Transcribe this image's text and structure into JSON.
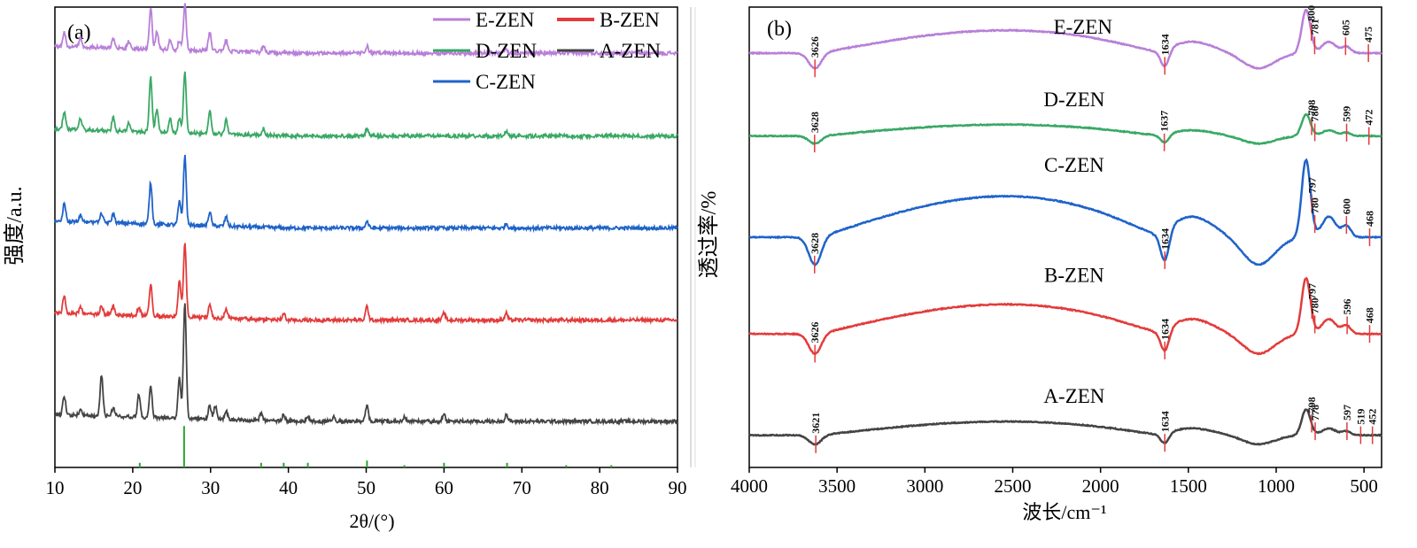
{
  "chart_data": [
    {
      "type": "line",
      "panel_label": "(a)",
      "title": "",
      "xlabel": "2θ/(°)",
      "ylabel": "强度/a.u.",
      "xlim": [
        10,
        90
      ],
      "x_ticks": [
        10,
        20,
        30,
        40,
        50,
        60,
        70,
        80,
        90
      ],
      "grid": false,
      "legend": {
        "placement": "top-right",
        "entries": [
          {
            "name": "E-ZEN",
            "color": "#b87fd8"
          },
          {
            "name": "B-ZEN",
            "color": "#e23c3c"
          },
          {
            "name": "D-ZEN",
            "color": "#3aa865"
          },
          {
            "name": "A-ZEN",
            "color": "#444444"
          },
          {
            "name": "C-ZEN",
            "color": "#1f63c9"
          }
        ]
      },
      "series": [
        {
          "name": "E-ZEN",
          "color": "#b87fd8",
          "baseline_au": 0.9,
          "peaks": [
            {
              "x": 11.2,
              "h": 0.03
            },
            {
              "x": 13.3,
              "h": 0.02
            },
            {
              "x": 17.5,
              "h": 0.02
            },
            {
              "x": 19.5,
              "h": 0.015
            },
            {
              "x": 22.3,
              "h": 0.09
            },
            {
              "x": 23.1,
              "h": 0.04
            },
            {
              "x": 24.8,
              "h": 0.02
            },
            {
              "x": 26.0,
              "h": 0.02
            },
            {
              "x": 26.7,
              "h": 0.1
            },
            {
              "x": 29.9,
              "h": 0.04
            },
            {
              "x": 32.0,
              "h": 0.025
            },
            {
              "x": 36.8,
              "h": 0.015
            },
            {
              "x": 50.1,
              "h": 0.015
            },
            {
              "x": 68.0,
              "h": 0.01
            }
          ]
        },
        {
          "name": "D-ZEN",
          "color": "#3aa865",
          "baseline_au": 0.72,
          "peaks": [
            {
              "x": 11.2,
              "h": 0.04
            },
            {
              "x": 13.3,
              "h": 0.025
            },
            {
              "x": 17.5,
              "h": 0.03
            },
            {
              "x": 19.5,
              "h": 0.02
            },
            {
              "x": 22.3,
              "h": 0.12
            },
            {
              "x": 23.1,
              "h": 0.05
            },
            {
              "x": 24.8,
              "h": 0.03
            },
            {
              "x": 26.0,
              "h": 0.03
            },
            {
              "x": 26.7,
              "h": 0.13
            },
            {
              "x": 29.9,
              "h": 0.05
            },
            {
              "x": 32.0,
              "h": 0.03
            },
            {
              "x": 36.8,
              "h": 0.015
            },
            {
              "x": 50.1,
              "h": 0.015
            },
            {
              "x": 68.0,
              "h": 0.01
            }
          ]
        },
        {
          "name": "C-ZEN",
          "color": "#1f63c9",
          "baseline_au": 0.52,
          "peaks": [
            {
              "x": 11.2,
              "h": 0.04
            },
            {
              "x": 13.3,
              "h": 0.015
            },
            {
              "x": 16.0,
              "h": 0.02
            },
            {
              "x": 17.5,
              "h": 0.02
            },
            {
              "x": 22.3,
              "h": 0.09
            },
            {
              "x": 26.0,
              "h": 0.05
            },
            {
              "x": 26.7,
              "h": 0.15
            },
            {
              "x": 29.9,
              "h": 0.03
            },
            {
              "x": 32.0,
              "h": 0.02
            },
            {
              "x": 50.1,
              "h": 0.015
            },
            {
              "x": 68.0,
              "h": 0.01
            }
          ]
        },
        {
          "name": "B-ZEN",
          "color": "#e23c3c",
          "baseline_au": 0.32,
          "peaks": [
            {
              "x": 11.2,
              "h": 0.04
            },
            {
              "x": 13.3,
              "h": 0.015
            },
            {
              "x": 16.0,
              "h": 0.02
            },
            {
              "x": 17.5,
              "h": 0.02
            },
            {
              "x": 20.8,
              "h": 0.02
            },
            {
              "x": 22.3,
              "h": 0.07
            },
            {
              "x": 26.0,
              "h": 0.08
            },
            {
              "x": 26.7,
              "h": 0.16
            },
            {
              "x": 29.9,
              "h": 0.03
            },
            {
              "x": 32.0,
              "h": 0.02
            },
            {
              "x": 39.4,
              "h": 0.015
            },
            {
              "x": 50.1,
              "h": 0.03
            },
            {
              "x": 60.0,
              "h": 0.015
            },
            {
              "x": 68.0,
              "h": 0.015
            }
          ]
        },
        {
          "name": "A-ZEN",
          "color": "#444444",
          "baseline_au": 0.1,
          "peaks": [
            {
              "x": 11.2,
              "h": 0.04
            },
            {
              "x": 13.3,
              "h": 0.015
            },
            {
              "x": 16.0,
              "h": 0.09
            },
            {
              "x": 17.5,
              "h": 0.02
            },
            {
              "x": 20.8,
              "h": 0.05
            },
            {
              "x": 22.3,
              "h": 0.07
            },
            {
              "x": 26.0,
              "h": 0.09
            },
            {
              "x": 26.7,
              "h": 0.25
            },
            {
              "x": 29.9,
              "h": 0.03
            },
            {
              "x": 30.6,
              "h": 0.03
            },
            {
              "x": 32.0,
              "h": 0.02
            },
            {
              "x": 36.5,
              "h": 0.015
            },
            {
              "x": 39.4,
              "h": 0.015
            },
            {
              "x": 42.5,
              "h": 0.01
            },
            {
              "x": 45.8,
              "h": 0.01
            },
            {
              "x": 50.1,
              "h": 0.035
            },
            {
              "x": 54.9,
              "h": 0.01
            },
            {
              "x": 60.0,
              "h": 0.015
            },
            {
              "x": 68.0,
              "h": 0.015
            }
          ]
        }
      ],
      "reference_sticks": {
        "color": "#2aa52a",
        "peaks": [
          {
            "x": 20.9,
            "h": 0.01
          },
          {
            "x": 26.6,
            "h": 0.09
          },
          {
            "x": 36.5,
            "h": 0.01
          },
          {
            "x": 39.4,
            "h": 0.01
          },
          {
            "x": 42.5,
            "h": 0.01
          },
          {
            "x": 50.1,
            "h": 0.015
          },
          {
            "x": 54.9,
            "h": 0.005
          },
          {
            "x": 60.0,
            "h": 0.01
          },
          {
            "x": 68.1,
            "h": 0.01
          },
          {
            "x": 75.7,
            "h": 0.005
          },
          {
            "x": 81.5,
            "h": 0.005
          }
        ]
      }
    },
    {
      "type": "line",
      "panel_label": "(b)",
      "title": "",
      "xlabel": "波长/cm⁻¹",
      "ylabel": "透过率/%",
      "xlim": [
        4000,
        400
      ],
      "x_ticks": [
        4000,
        3500,
        3000,
        2500,
        2000,
        1500,
        1000,
        500
      ],
      "grid": false,
      "series": [
        {
          "name": "E-ZEN",
          "color": "#b87fd8",
          "label_at_x": 2100,
          "baseline_au": 0.9,
          "amplitude_au": 0.1,
          "peak_labels": [
            "3626",
            "1634",
            "800",
            "781",
            "605",
            "475"
          ]
        },
        {
          "name": "D-ZEN",
          "color": "#3aa865",
          "label_at_x": 2150,
          "baseline_au": 0.72,
          "amplitude_au": 0.05,
          "peak_labels": [
            "3628",
            "1637",
            "798",
            "780",
            "599",
            "472"
          ]
        },
        {
          "name": "C-ZEN",
          "color": "#1f63c9",
          "label_at_x": 2150,
          "baseline_au": 0.5,
          "amplitude_au": 0.18,
          "peak_labels": [
            "3628",
            "1634",
            "797",
            "780",
            "600",
            "468"
          ]
        },
        {
          "name": "B-ZEN",
          "color": "#e23c3c",
          "label_at_x": 2150,
          "baseline_au": 0.29,
          "amplitude_au": 0.13,
          "peak_labels": [
            "3626",
            "1634",
            "797",
            "780",
            "596",
            "468"
          ]
        },
        {
          "name": "A-ZEN",
          "color": "#444444",
          "label_at_x": 2150,
          "baseline_au": 0.07,
          "amplitude_au": 0.06,
          "peak_labels": [
            "3621",
            "1634",
            "798",
            "778",
            "597",
            "519",
            "452"
          ]
        }
      ]
    }
  ]
}
